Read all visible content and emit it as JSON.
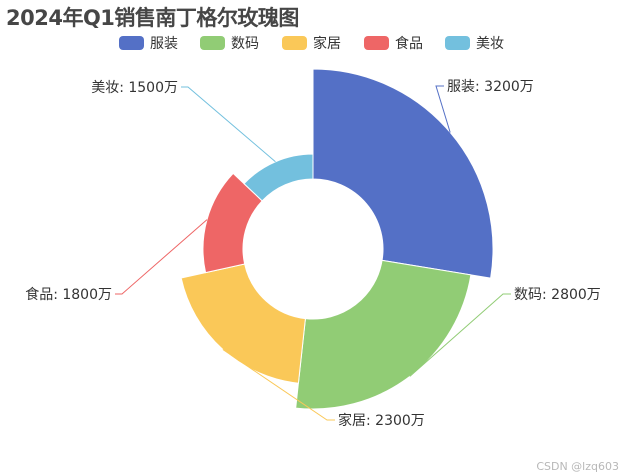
{
  "title": "2024年Q1销售南丁格尔玫瑰图",
  "watermark": "CSDN @lzq603",
  "chart_data": {
    "type": "pie",
    "subtype": "nightingale-rose",
    "unit": "万",
    "legend_position": "top",
    "series": [
      {
        "name": "服装",
        "value": 3200,
        "color": "#5470c6"
      },
      {
        "name": "数码",
        "value": 2800,
        "color": "#91cc75"
      },
      {
        "name": "家居",
        "value": 2300,
        "color": "#fac858"
      },
      {
        "name": "食品",
        "value": 1800,
        "color": "#ee6666"
      },
      {
        "name": "美妆",
        "value": 1500,
        "color": "#73c0de"
      }
    ],
    "labels": [
      "服装: 3200万",
      "数码: 2800万",
      "家居: 2300万",
      "食品: 1800万",
      "美妆: 1500万"
    ]
  }
}
